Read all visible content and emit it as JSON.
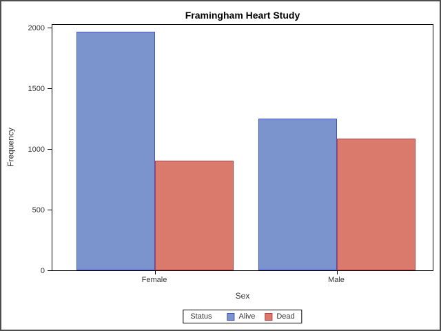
{
  "chart_data": {
    "type": "bar",
    "title": "Framingham Heart Study",
    "xlabel": "Sex",
    "ylabel": "Frequency",
    "categories": [
      "Female",
      "Male"
    ],
    "series": [
      {
        "name": "Alive",
        "values": [
          1968,
          1250
        ],
        "fill": "#7c94cd",
        "stroke": "#4353c8"
      },
      {
        "name": "Dead",
        "values": [
          905,
          1086
        ],
        "fill": "#da7a6c",
        "stroke": "#bb4043"
      }
    ],
    "ylim": [
      0,
      2000
    ],
    "yticks": [
      0,
      500,
      1000,
      1500,
      2000
    ],
    "grid": false,
    "grouped": true,
    "legend": {
      "title": "Status",
      "position": "bottom"
    }
  },
  "colors": {
    "plot_frame": "#000000",
    "outer_border": "#4d4d4d",
    "background": "#ffffff",
    "text": "#333333"
  }
}
